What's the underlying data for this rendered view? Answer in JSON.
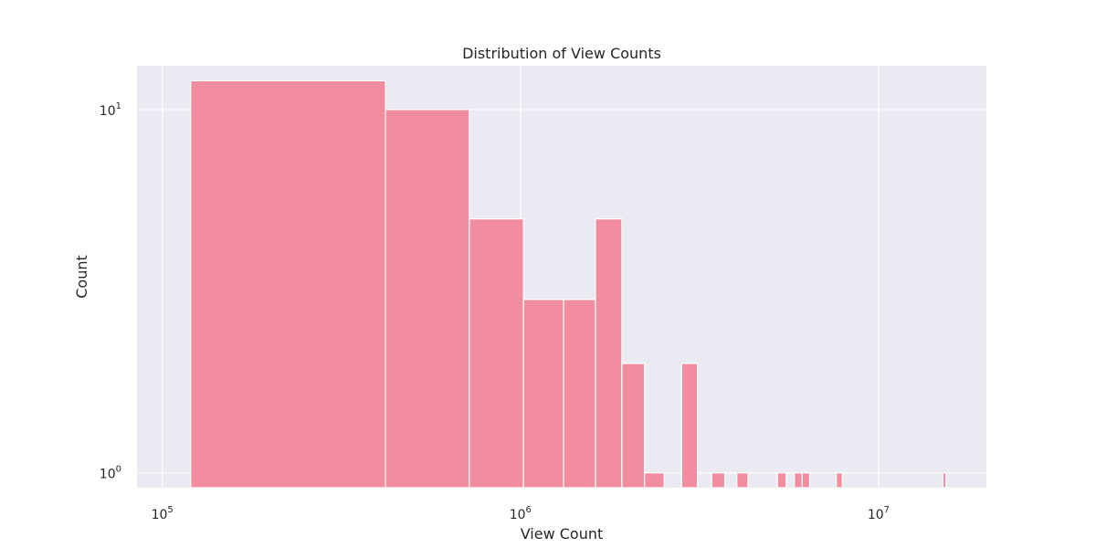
{
  "chart_data": {
    "type": "bar",
    "title": "Distribution of View Counts",
    "xlabel": "View Count",
    "ylabel": "Count",
    "x_scale": "log",
    "y_scale": "log",
    "xlim": [
      85000,
      20000000
    ],
    "ylim": [
      0.91,
      13.2
    ],
    "grid": true,
    "x_ticks": [
      {
        "value": 100000,
        "base": "10",
        "exp": "5"
      },
      {
        "value": 1000000,
        "base": "10",
        "exp": "6"
      },
      {
        "value": 10000000,
        "base": "10",
        "exp": "7"
      }
    ],
    "y_ticks": [
      {
        "value": 1,
        "base": "10",
        "exp": "0"
      },
      {
        "value": 10,
        "base": "10",
        "exp": "1"
      }
    ],
    "bins": [
      {
        "x0": 120000,
        "x1": 420000,
        "count": 12
      },
      {
        "x0": 420000,
        "x1": 720000,
        "count": 10
      },
      {
        "x0": 720000,
        "x1": 1020000,
        "count": 5
      },
      {
        "x0": 1020000,
        "x1": 1320000,
        "count": 3
      },
      {
        "x0": 1320000,
        "x1": 1620000,
        "count": 3
      },
      {
        "x0": 1620000,
        "x1": 1920000,
        "count": 5
      },
      {
        "x0": 1920000,
        "x1": 2220000,
        "count": 2
      },
      {
        "x0": 2220000,
        "x1": 2520000,
        "count": 1
      },
      {
        "x0": 2820000,
        "x1": 3120000,
        "count": 2
      },
      {
        "x0": 3420000,
        "x1": 3720000,
        "count": 1
      },
      {
        "x0": 4020000,
        "x1": 4320000,
        "count": 1
      },
      {
        "x0": 5220000,
        "x1": 5520000,
        "count": 1
      },
      {
        "x0": 5820000,
        "x1": 6120000,
        "count": 1
      },
      {
        "x0": 6120000,
        "x1": 6420000,
        "count": 1
      },
      {
        "x0": 7620000,
        "x1": 7920000,
        "count": 1
      },
      {
        "x0": 15120000,
        "x1": 15420000,
        "count": 1
      }
    ],
    "colors": {
      "bar": "#f28da0",
      "bar_edge": "#ffffff",
      "plot_background": "#eaeaf2",
      "grid": "#ffffff"
    }
  }
}
